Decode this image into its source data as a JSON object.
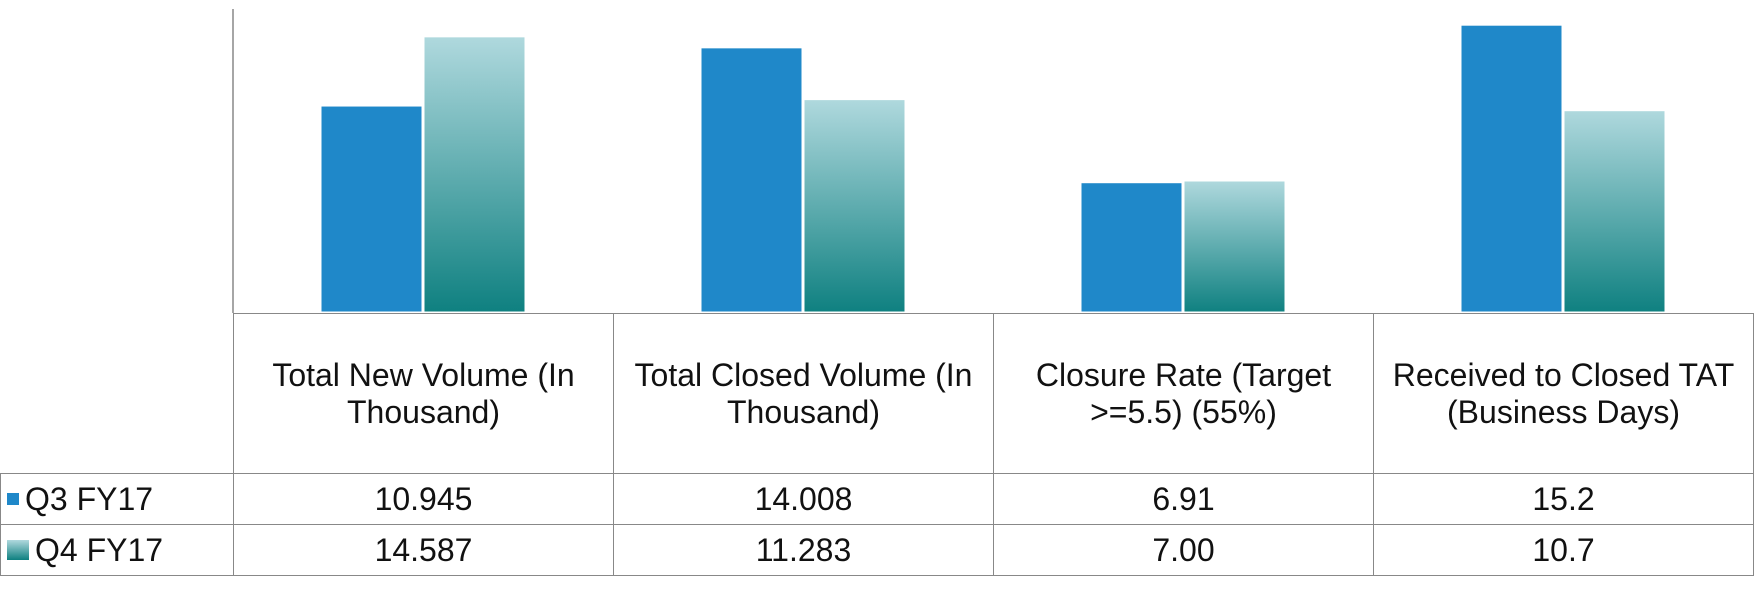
{
  "chart_data": {
    "type": "bar",
    "categories": [
      "Total New Volume (In Thousand)",
      "Total Closed Volume (In Thousand)",
      "Closure Rate (Target >=5.5) (55%)",
      "Received to Closed TAT (Business Days)"
    ],
    "series": [
      {
        "name": "Q3 FY17",
        "color": "#1f88c9",
        "values": [
          10.945,
          14.008,
          6.91,
          15.2
        ],
        "value_labels": [
          "10.945",
          "14.008",
          "6.91",
          "15.2"
        ]
      },
      {
        "name": "Q4 FY17",
        "color": [
          "#b0d9de",
          "#0e8080"
        ],
        "values": [
          14.587,
          11.283,
          7.0,
          10.7
        ],
        "value_labels": [
          "14.587",
          "11.283",
          "7.00",
          "10.7"
        ]
      }
    ],
    "ylim": [
      0,
      16
    ]
  }
}
